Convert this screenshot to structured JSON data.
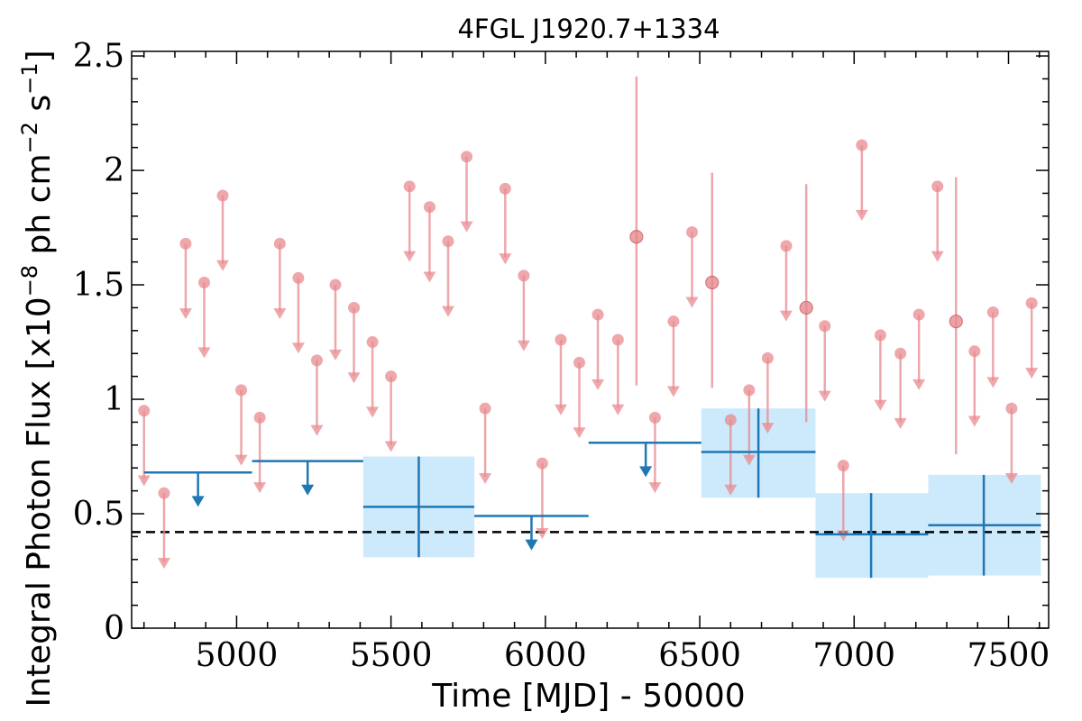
{
  "chart_data": {
    "type": "scatter",
    "title": "4FGL J1920.7+1334",
    "xlabel": "Time [MJD] - 50000",
    "ylabel_parts": {
      "base": "Integral Photon Flux [x10",
      "exp1": "−8",
      "mid": " ph cm",
      "exp2": "−2",
      "mid2": " s",
      "exp3": "−1",
      "end": "]"
    },
    "xlim": [
      4660,
      7630
    ],
    "ylim": [
      0,
      2.52
    ],
    "xticks": [
      5000,
      5500,
      6000,
      6500,
      7000,
      7500
    ],
    "xtick_labels": [
      "5000",
      "5500",
      "6000",
      "6500",
      "7000",
      "7500"
    ],
    "yticks": [
      0,
      0.5,
      1,
      1.5,
      2,
      2.5
    ],
    "ytick_labels": [
      "0",
      "0.5",
      "1",
      "1.5",
      "2",
      "2.5"
    ],
    "baseline_flux": 0.42,
    "colors": {
      "short_bin": "#e88a8f",
      "long_bin": "#1f77b4",
      "long_bin_fill": "#cdeafc",
      "baseline": "#000000"
    },
    "short_bin_upper_limits": [
      {
        "t": 4700,
        "ul": 0.95
      },
      {
        "t": 4765,
        "ul": 0.59
      },
      {
        "t": 4835,
        "ul": 1.68
      },
      {
        "t": 4895,
        "ul": 1.51
      },
      {
        "t": 4955,
        "ul": 1.89
      },
      {
        "t": 5015,
        "ul": 1.04
      },
      {
        "t": 5075,
        "ul": 0.92
      },
      {
        "t": 5140,
        "ul": 1.68
      },
      {
        "t": 5200,
        "ul": 1.53
      },
      {
        "t": 5260,
        "ul": 1.17
      },
      {
        "t": 5320,
        "ul": 1.5
      },
      {
        "t": 5380,
        "ul": 1.4
      },
      {
        "t": 5440,
        "ul": 1.25
      },
      {
        "t": 5500,
        "ul": 1.1
      },
      {
        "t": 5560,
        "ul": 1.93
      },
      {
        "t": 5625,
        "ul": 1.84
      },
      {
        "t": 5685,
        "ul": 1.69
      },
      {
        "t": 5745,
        "ul": 2.06
      },
      {
        "t": 5805,
        "ul": 0.96
      },
      {
        "t": 5870,
        "ul": 1.92
      },
      {
        "t": 5930,
        "ul": 1.54
      },
      {
        "t": 5990,
        "ul": 0.72
      },
      {
        "t": 6050,
        "ul": 1.26
      },
      {
        "t": 6110,
        "ul": 1.16
      },
      {
        "t": 6170,
        "ul": 1.37
      },
      {
        "t": 6235,
        "ul": 1.26
      },
      {
        "t": 6355,
        "ul": 0.92
      },
      {
        "t": 6415,
        "ul": 1.34
      },
      {
        "t": 6475,
        "ul": 1.73
      },
      {
        "t": 6600,
        "ul": 0.91
      },
      {
        "t": 6660,
        "ul": 1.04
      },
      {
        "t": 6720,
        "ul": 1.18
      },
      {
        "t": 6780,
        "ul": 1.67
      },
      {
        "t": 6905,
        "ul": 1.32
      },
      {
        "t": 6965,
        "ul": 0.71
      },
      {
        "t": 7025,
        "ul": 2.11
      },
      {
        "t": 7085,
        "ul": 1.28
      },
      {
        "t": 7150,
        "ul": 1.2
      },
      {
        "t": 7210,
        "ul": 1.37
      },
      {
        "t": 7270,
        "ul": 1.93
      },
      {
        "t": 7390,
        "ul": 1.21
      },
      {
        "t": 7450,
        "ul": 1.38
      },
      {
        "t": 7510,
        "ul": 0.96
      },
      {
        "t": 7575,
        "ul": 1.42
      }
    ],
    "short_bin_detections": [
      {
        "t": 6295,
        "flux": 1.71,
        "err_lo": 1.06,
        "err_hi": 2.41
      },
      {
        "t": 6540,
        "flux": 1.51,
        "err_lo": 1.05,
        "err_hi": 1.99
      },
      {
        "t": 6845,
        "flux": 1.4,
        "err_lo": 0.9,
        "err_hi": 1.94
      },
      {
        "t": 7330,
        "flux": 1.34,
        "err_lo": 0.76,
        "err_hi": 1.97
      }
    ],
    "long_bin_upper_limits": [
      {
        "t0": 4700,
        "t1": 5050,
        "tmid": 4875,
        "ul": 0.68
      },
      {
        "t0": 5050,
        "t1": 5410,
        "tmid": 5230,
        "ul": 0.73
      },
      {
        "t0": 5770,
        "t1": 6140,
        "tmid": 5955,
        "ul": 0.49
      },
      {
        "t0": 6140,
        "t1": 6505,
        "tmid": 6325,
        "ul": 0.81
      }
    ],
    "long_bin_detections": [
      {
        "t0": 5410,
        "t1": 5770,
        "tmid": 5590,
        "flux": 0.53,
        "err_lo": 0.31,
        "err_hi": 0.75
      },
      {
        "t0": 6505,
        "t1": 6875,
        "tmid": 6690,
        "flux": 0.77,
        "err_lo": 0.57,
        "err_hi": 0.96
      },
      {
        "t0": 6875,
        "t1": 7240,
        "tmid": 7055,
        "flux": 0.41,
        "err_lo": 0.22,
        "err_hi": 0.59
      },
      {
        "t0": 7240,
        "t1": 7605,
        "tmid": 7420,
        "flux": 0.45,
        "err_lo": 0.23,
        "err_hi": 0.67
      }
    ]
  }
}
